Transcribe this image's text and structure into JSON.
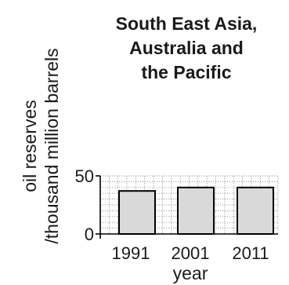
{
  "chart_data": {
    "type": "bar",
    "title_lines": [
      "South East Asia,",
      "Australia and",
      "the Pacific"
    ],
    "xlabel": "year",
    "ylabel_lines": [
      "oil reserves",
      "/thousand million barrels"
    ],
    "categories": [
      "1991",
      "2001",
      "2011"
    ],
    "values": [
      37,
      40,
      40
    ],
    "ylim": [
      0,
      50
    ],
    "yticks": [
      "0",
      "50"
    ],
    "grid": true,
    "bar_color": "#d9d9d9",
    "bar_edge_color": "#000000"
  }
}
